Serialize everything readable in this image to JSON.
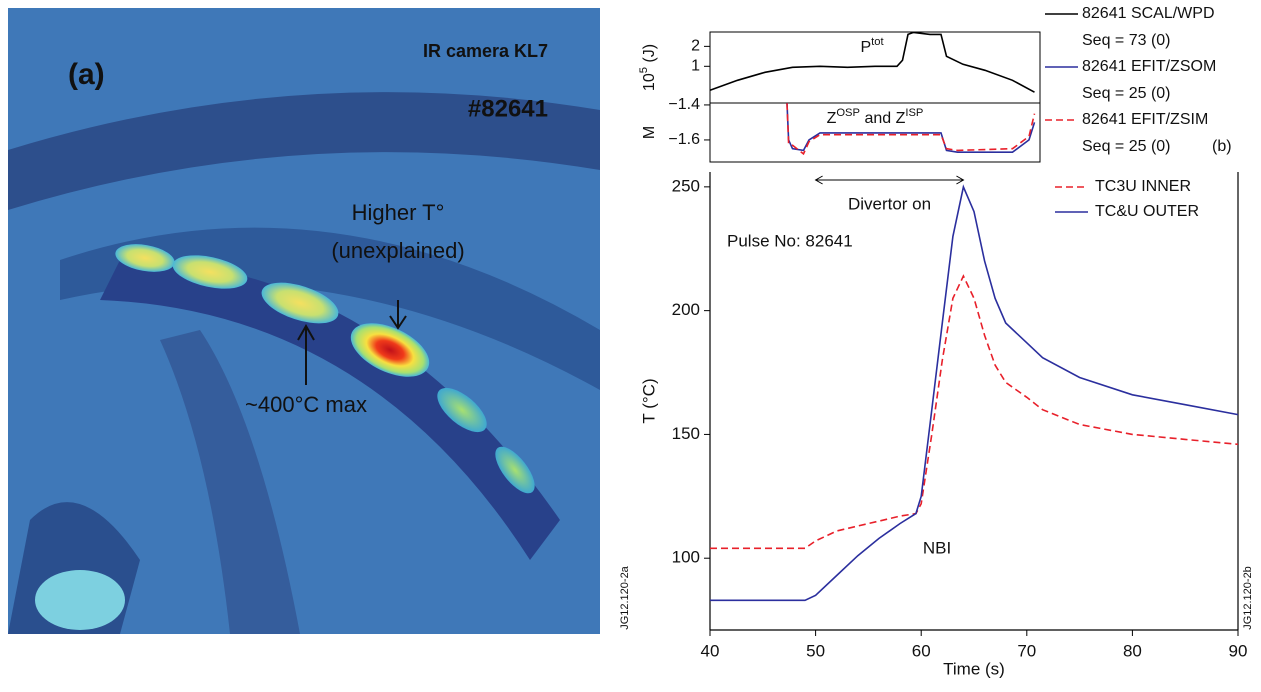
{
  "image_panel": {
    "labels": [
      "(a)",
      "IR camera KL7",
      "#82641",
      "Higher T°",
      "(unexplained)",
      "~400°C max"
    ],
    "code": "JG12.120-2a"
  },
  "chart_data": [
    {
      "type": "line",
      "y_label_parts": [
        {
          "t": "10"
        },
        {
          "t": "5",
          "sup": true
        },
        {
          "t": " (J)"
        }
      ],
      "annotation_parts": [
        {
          "t": "P"
        },
        {
          "t": "tot",
          "sup": true
        }
      ],
      "x": [
        20,
        25,
        30,
        35,
        40,
        45,
        50,
        54,
        55,
        56,
        57,
        60,
        62,
        63,
        66,
        70,
        75,
        79
      ],
      "xlim": [
        20,
        80
      ],
      "ylim": [
        -0.84,
        2.72
      ],
      "yticks": [
        1,
        2
      ],
      "series": [
        {
          "name": "82641 SCAL/WPD",
          "seq": "Seq = 73 (0)",
          "color": "#000000",
          "dash": false,
          "values": [
            -0.2,
            0.3,
            0.7,
            0.95,
            1.0,
            0.95,
            1.0,
            1.0,
            1.3,
            2.6,
            2.7,
            2.6,
            2.6,
            1.5,
            1.1,
            0.8,
            0.3,
            -0.3
          ]
        }
      ]
    },
    {
      "type": "line",
      "y_label_parts": [
        {
          "t": "M"
        }
      ],
      "annotation_parts": [
        {
          "t": "Z"
        },
        {
          "t": "OSP",
          "sup": true
        },
        {
          "t": " and Z"
        },
        {
          "t": "ISP",
          "sup": true
        }
      ],
      "x": [
        34,
        34.3,
        35,
        37,
        38,
        40,
        45,
        60,
        62,
        63,
        65,
        75,
        78,
        79
      ],
      "xlim": [
        20,
        80
      ],
      "ylim": [
        -1.726,
        -1.389
      ],
      "yticks": [
        {
          "value": -1.4,
          "label": "−1.4"
        },
        {
          "value": -1.6,
          "label": "−1.6"
        }
      ],
      "series": [
        {
          "name": "82641 EFIT/ZSOM",
          "seq": "Seq = 25 (0)",
          "color": "#2b2f9e",
          "dash": false,
          "values": [
            -1.39,
            -1.6,
            -1.65,
            -1.66,
            -1.6,
            -1.56,
            -1.56,
            -1.56,
            -1.56,
            -1.66,
            -1.67,
            -1.67,
            -1.6,
            -1.5
          ]
        },
        {
          "name": "82641 EFIT/ZSIM",
          "seq": "Seq = 25 (0)",
          "color": "#e8202a",
          "dash": true,
          "values": [
            -1.39,
            -1.62,
            -1.63,
            -1.68,
            -1.61,
            -1.57,
            -1.57,
            -1.57,
            -1.57,
            -1.65,
            -1.66,
            -1.65,
            -1.58,
            -1.45
          ]
        }
      ],
      "panel_label": "(b)"
    },
    {
      "type": "line",
      "x_label": "Time (s)",
      "y_label": "T (°C)",
      "code": "JG12.120-2b",
      "x": [
        40,
        44,
        48,
        49,
        50,
        52,
        54,
        56,
        58,
        59.5,
        60,
        61,
        62,
        63,
        64,
        65,
        66,
        67,
        68,
        70,
        71.5,
        75,
        80,
        85,
        90
      ],
      "xlim": [
        40,
        90
      ],
      "xticks": [
        40,
        50,
        60,
        70,
        80,
        90
      ],
      "ylim": [
        71,
        256
      ],
      "yticks": [
        100,
        150,
        200,
        250
      ],
      "annotations": {
        "divertor": {
          "text": "Divertor on",
          "span": [
            50,
            64
          ]
        },
        "pulse": "Pulse No: 82641",
        "nbi": "NBI"
      },
      "series": [
        {
          "name": "TC3U INNER",
          "color": "#e8202a",
          "dash": true,
          "values": [
            104,
            104,
            104,
            104,
            107,
            111,
            113,
            115,
            117,
            118,
            122,
            150,
            180,
            205,
            214,
            205,
            190,
            178,
            171,
            165,
            160,
            154,
            150,
            148,
            146
          ]
        },
        {
          "name": "TC&U OUTER",
          "color": "#2b2f9e",
          "dash": false,
          "values": [
            83,
            83,
            83,
            83,
            85,
            93,
            101,
            108,
            114,
            118,
            125,
            160,
            195,
            230,
            250,
            240,
            220,
            205,
            195,
            187,
            181,
            173,
            166,
            162,
            158
          ]
        }
      ]
    }
  ]
}
